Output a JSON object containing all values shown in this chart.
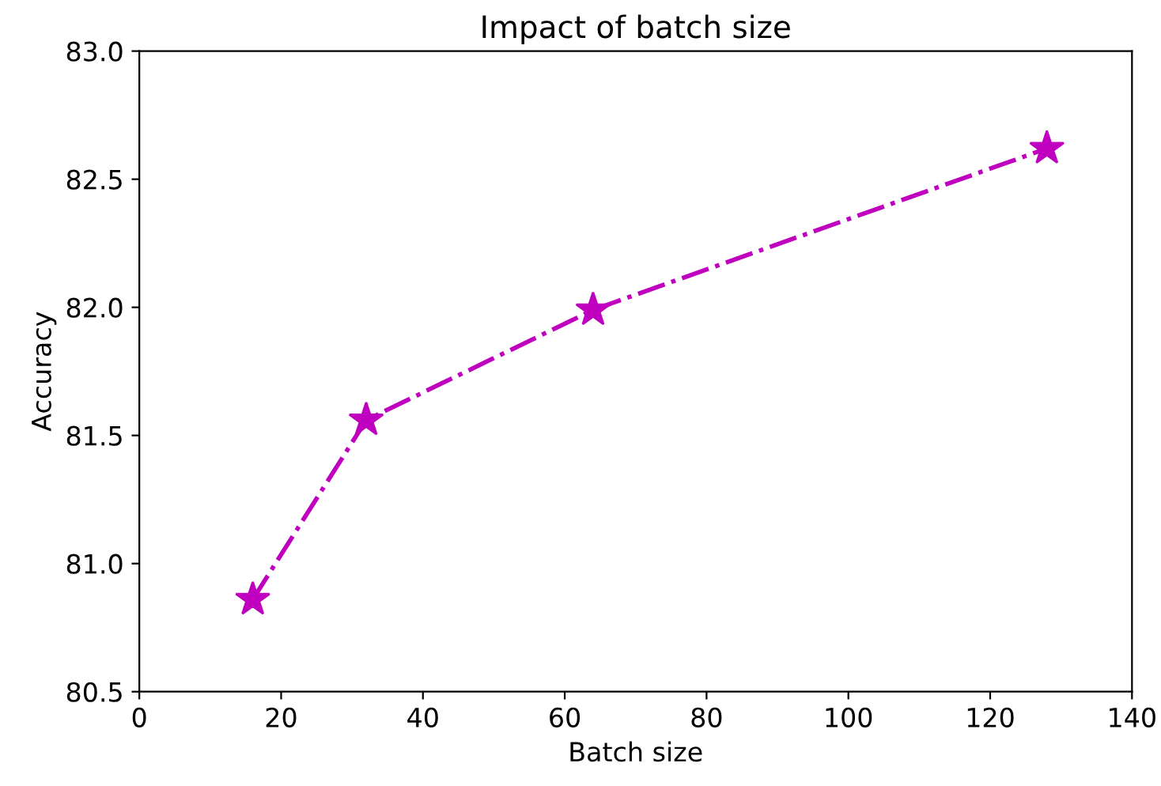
{
  "chart_data": {
    "type": "line",
    "title": "Impact of batch size",
    "xlabel": "Batch size",
    "ylabel": "Accuracy",
    "x": [
      16,
      32,
      64,
      128
    ],
    "series": [
      {
        "color": "#bf00bf",
        "values": [
          80.86,
          81.56,
          81.99,
          82.62
        ]
      }
    ],
    "marker": "star",
    "line_style": "dashdot",
    "xlim": [
      0,
      140
    ],
    "xticks": [
      0,
      20,
      40,
      60,
      80,
      100,
      120,
      140
    ],
    "ylim": [
      80.5,
      83.0
    ],
    "yticks": [
      {
        "value": 80.5,
        "label": "80.5"
      },
      {
        "value": 81.0,
        "label": "81.0"
      },
      {
        "value": 81.5,
        "label": "81.5"
      },
      {
        "value": 82.0,
        "label": "82.0"
      },
      {
        "value": 82.5,
        "label": "82.5"
      },
      {
        "value": 83.0,
        "label": "83.0"
      }
    ],
    "grid": false,
    "legend": false
  }
}
